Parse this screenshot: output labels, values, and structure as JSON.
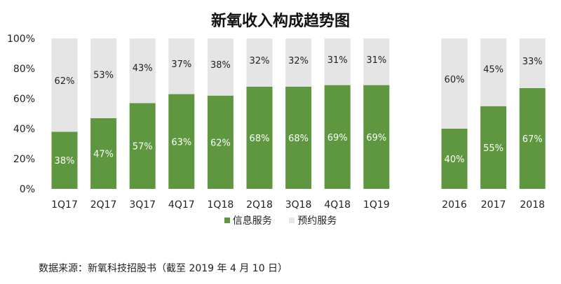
{
  "chart_data": {
    "type": "bar",
    "stacked": true,
    "title": "新氧收入构成趋势图",
    "categories": [
      "1Q17",
      "2Q17",
      "3Q17",
      "4Q17",
      "1Q18",
      "2Q18",
      "3Q18",
      "4Q18",
      "1Q19",
      "2016",
      "2017",
      "2018"
    ],
    "series": [
      {
        "name": "信息服务",
        "color": "#5e973f",
        "values": [
          38,
          47,
          57,
          63,
          62,
          68,
          68,
          69,
          69,
          40,
          55,
          67
        ],
        "labels": [
          "38%",
          "47%",
          "57%",
          "63%",
          "62%",
          "68%",
          "68%",
          "69%",
          "69%",
          "40%",
          "55%",
          "67%"
        ]
      },
      {
        "name": "预约服务",
        "color": "#e5e5e5",
        "values": [
          62,
          53,
          43,
          37,
          38,
          32,
          32,
          31,
          31,
          60,
          45,
          33
        ],
        "labels": [
          "62%",
          "53%",
          "43%",
          "37%",
          "38%",
          "32%",
          "32%",
          "31%",
          "31%",
          "60%",
          "45%",
          "33%"
        ]
      }
    ],
    "yticks": [
      "0%",
      "20%",
      "40%",
      "60%",
      "80%",
      "100%"
    ],
    "ylim": [
      0,
      100
    ],
    "grid": false,
    "legend": "bottom"
  },
  "source": "数据来源：新氧科技招股书（截至 2019 年 4 月 10 日）"
}
